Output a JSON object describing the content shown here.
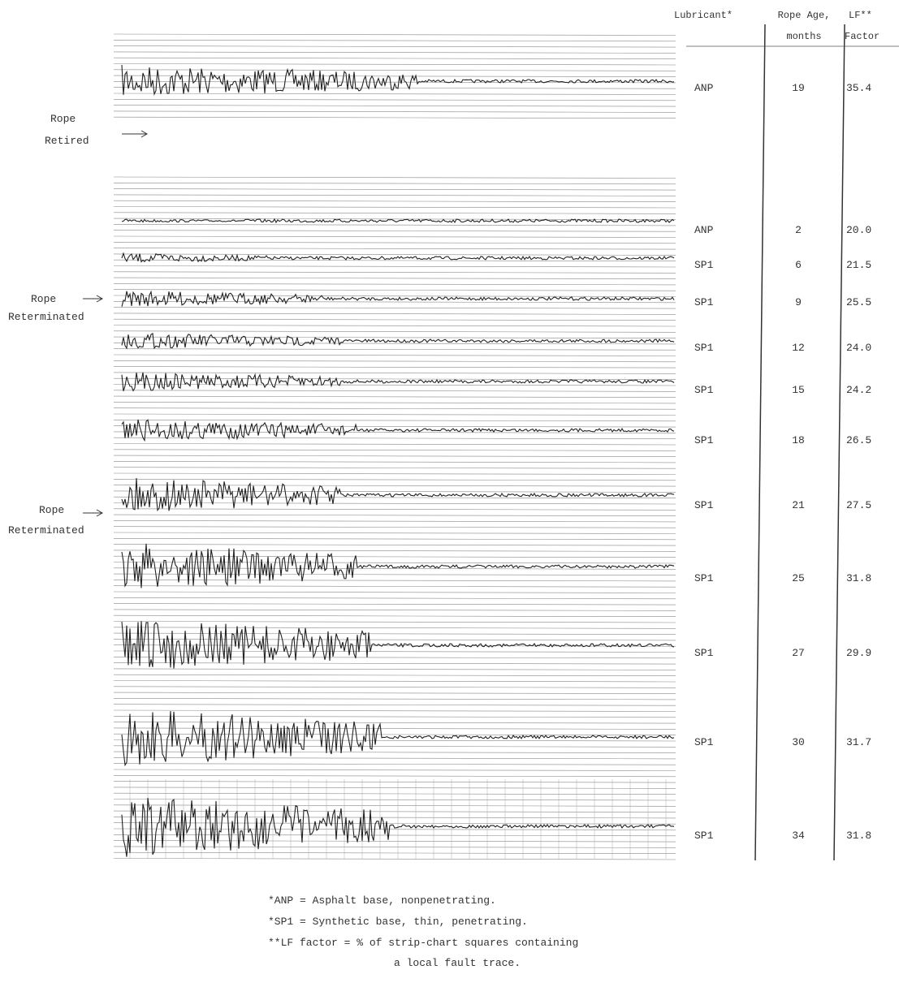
{
  "header": {
    "lubricant": "Lubricant*",
    "age_line1": "Rope Age,",
    "age_line2": "months",
    "lf_line1": "LF**",
    "lf_line2": "Factor"
  },
  "table": {
    "rows": [
      [
        "ANP",
        "19",
        "35.4"
      ],
      [
        "ANP",
        "2",
        "20.0"
      ],
      [
        "SP1",
        "6",
        "21.5"
      ],
      [
        "SP1",
        "9",
        "25.5"
      ],
      [
        "SP1",
        "12",
        "24.0"
      ],
      [
        "SP1",
        "15",
        "24.2"
      ],
      [
        "SP1",
        "18",
        "26.5"
      ],
      [
        "SP1",
        "21",
        "27.5"
      ],
      [
        "SP1",
        "25",
        "31.8"
      ],
      [
        "SP1",
        "27",
        "29.9"
      ],
      [
        "SP1",
        "30",
        "31.7"
      ],
      [
        "SP1",
        "34",
        "31.8"
      ]
    ]
  },
  "side_labels": [
    [
      "Rope",
      "Retired"
    ],
    [
      "Rope",
      "Reterminated"
    ],
    [
      "Rope",
      "Reterminated"
    ]
  ],
  "footnotes": [
    "*ANP = Asphalt base, nonpenetrating.",
    "*SP1 = Synthetic base, thin, penetrating.",
    "**LF factor = % of strip-chart squares containing",
    "a local fault trace."
  ]
}
